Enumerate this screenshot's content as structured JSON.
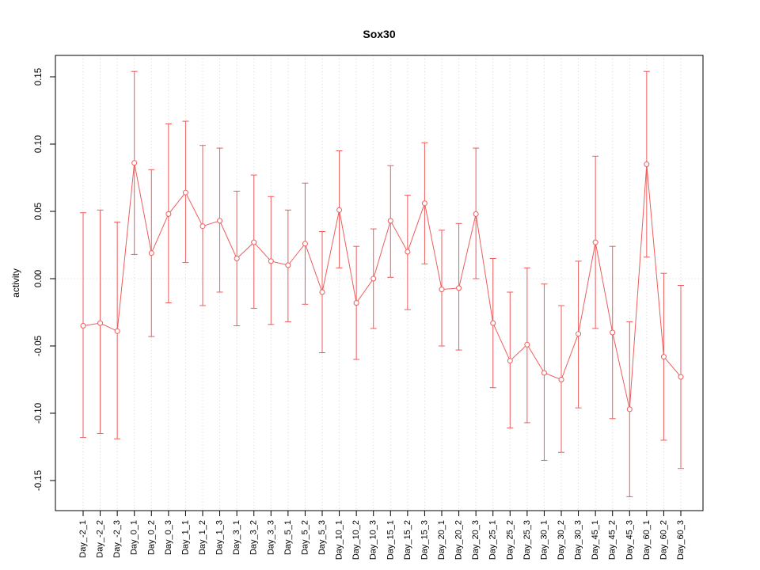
{
  "title": "Sox30",
  "chart_data": {
    "type": "line",
    "title": "Sox30",
    "xlabel": "",
    "ylabel": "activity",
    "ylim": [
      -0.172,
      0.166
    ],
    "yticks": [
      -0.15,
      -0.1,
      -0.05,
      0.0,
      0.05,
      0.1,
      0.15
    ],
    "ytick_labels": [
      "-0.15",
      "-0.10",
      "-0.05",
      "0.00",
      "0.05",
      "0.10",
      "0.15"
    ],
    "grid": "vertical-dotted-per-category-plus-dotted-zero-line",
    "legend": "none",
    "series_color": "#ee5c5c",
    "grid_color": "#d4d4d4",
    "marker": "open-circle",
    "error_bars": true,
    "categories": [
      "Day_-2_1",
      "Day_-2_2",
      "Day_-2_3",
      "Day_0_1",
      "Day_0_2",
      "Day_0_3",
      "Day_1_1",
      "Day_1_2",
      "Day_1_3",
      "Day_3_1",
      "Day_3_2",
      "Day_3_3",
      "Day_5_1",
      "Day_5_2",
      "Day_5_3",
      "Day_10_1",
      "Day_10_2",
      "Day_10_3",
      "Day_15_1",
      "Day_15_2",
      "Day_15_3",
      "Day_20_1",
      "Day_20_2",
      "Day_20_3",
      "Day_25_1",
      "Day_25_2",
      "Day_25_3",
      "Day_30_1",
      "Day_30_2",
      "Day_30_3",
      "Day_45_1",
      "Day_45_2",
      "Day_45_3",
      "Day_60_1",
      "Day_60_2",
      "Day_60_3"
    ],
    "values": [
      -0.035,
      -0.033,
      -0.039,
      0.086,
      0.019,
      0.048,
      0.064,
      0.039,
      0.043,
      0.015,
      0.027,
      0.013,
      0.01,
      0.026,
      -0.01,
      0.051,
      -0.018,
      0.0,
      0.043,
      0.02,
      0.056,
      -0.008,
      -0.007,
      0.048,
      -0.033,
      -0.061,
      -0.049,
      -0.07,
      -0.075,
      -0.041,
      0.027,
      -0.04,
      -0.097,
      0.085,
      -0.058,
      -0.073
    ],
    "error_low": [
      -0.118,
      -0.115,
      -0.119,
      0.018,
      -0.043,
      -0.018,
      0.012,
      -0.02,
      -0.01,
      -0.035,
      -0.022,
      -0.034,
      -0.032,
      -0.019,
      -0.055,
      0.008,
      -0.06,
      -0.037,
      0.001,
      -0.023,
      0.011,
      -0.05,
      -0.053,
      0.0,
      -0.081,
      -0.111,
      -0.107,
      -0.135,
      -0.129,
      -0.096,
      -0.037,
      -0.104,
      -0.162,
      0.016,
      -0.12,
      -0.141
    ],
    "error_high": [
      0.049,
      0.051,
      0.042,
      0.154,
      0.081,
      0.115,
      0.117,
      0.099,
      0.097,
      0.065,
      0.077,
      0.061,
      0.051,
      0.071,
      0.035,
      0.095,
      0.024,
      0.037,
      0.084,
      0.062,
      0.101,
      0.036,
      0.041,
      0.097,
      0.015,
      -0.01,
      0.008,
      -0.004,
      -0.02,
      0.013,
      0.091,
      0.024,
      -0.032,
      0.154,
      0.004,
      -0.005
    ]
  }
}
